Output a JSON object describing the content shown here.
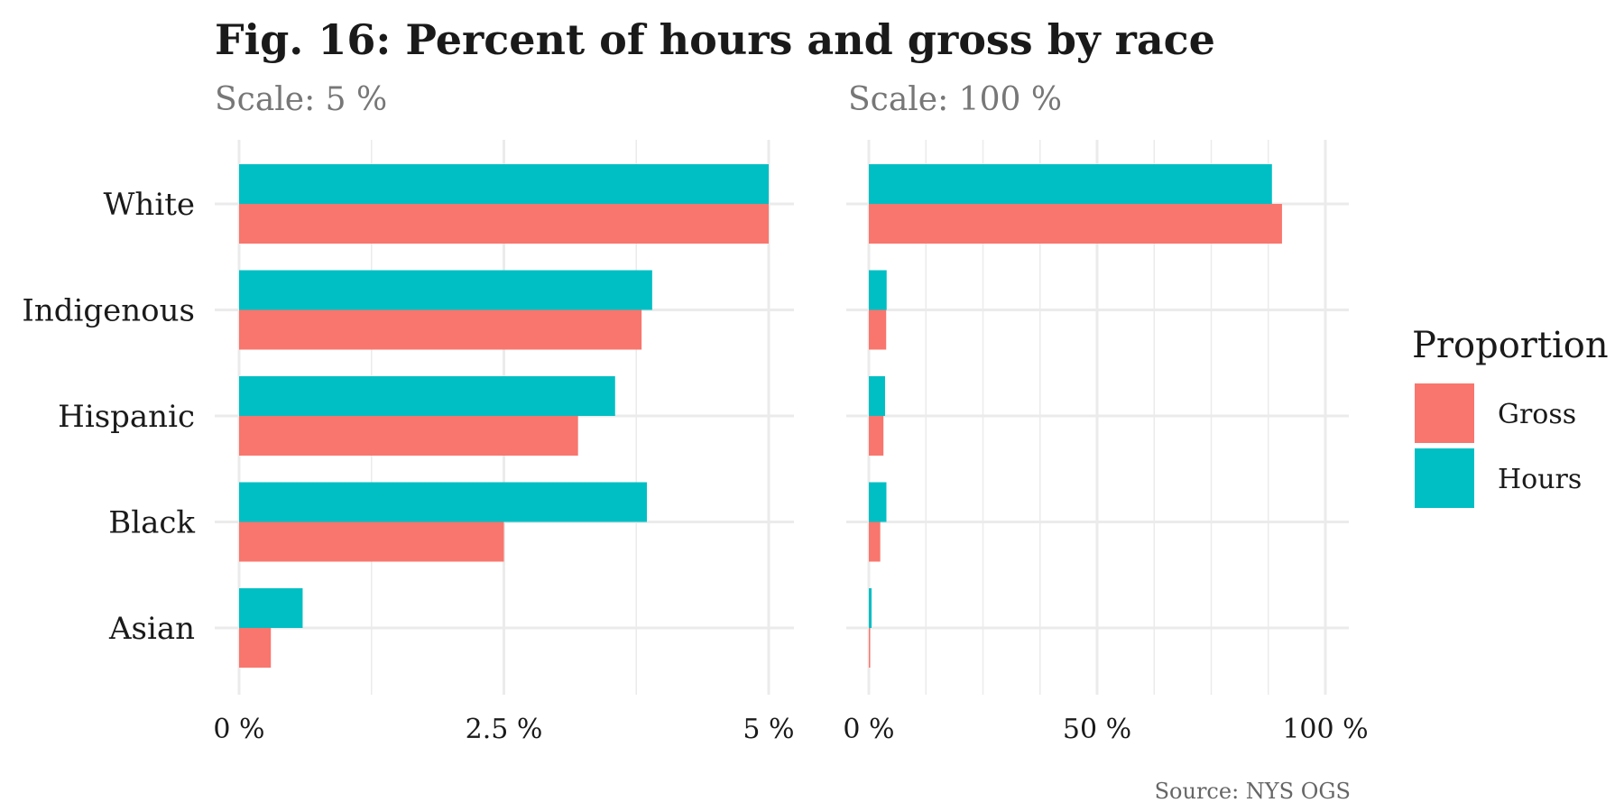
{
  "chart_data": {
    "type": "bar",
    "orientation": "horizontal",
    "title": "Fig. 16: Percent of hours and gross by race",
    "caption": "Source: NYS OGS",
    "categories": [
      "White",
      "Indigenous",
      "Hispanic",
      "Black",
      "Asian"
    ],
    "legend": {
      "title": "Proportion",
      "placement": "right",
      "entries": [
        {
          "name": "Gross",
          "color": "#F8766D"
        },
        {
          "name": "Hours",
          "color": "#00BFC4"
        }
      ]
    },
    "panels": [
      {
        "subtitle": "Scale: 5 %",
        "xlim": [
          0,
          5
        ],
        "ticks": [
          {
            "value": 0,
            "label": "0 %"
          },
          {
            "value": 2.5,
            "label": "2.5 %"
          },
          {
            "value": 5,
            "label": "5 %"
          }
        ],
        "minor_ticks": [
          1.25,
          3.75
        ],
        "series": [
          {
            "name": "Gross",
            "values": [
              5,
              3.8,
              3.2,
              2.5,
              0.3
            ]
          },
          {
            "name": "Hours",
            "values": [
              5,
              3.9,
              3.55,
              3.85,
              0.6
            ]
          }
        ]
      },
      {
        "subtitle": "Scale: 100 %",
        "xlim": [
          0,
          100
        ],
        "ticks": [
          {
            "value": 0,
            "label": "0 %"
          },
          {
            "value": 50,
            "label": "50 %"
          },
          {
            "value": 100,
            "label": "100 %"
          }
        ],
        "minor_ticks": [
          12.5,
          25,
          37.5,
          62.5,
          75,
          87.5
        ],
        "series": [
          {
            "name": "Gross",
            "values": [
              90.5,
              3.8,
              3.2,
              2.5,
              0.3
            ]
          },
          {
            "name": "Hours",
            "values": [
              88.3,
              3.9,
              3.55,
              3.85,
              0.6
            ]
          }
        ]
      }
    ],
    "grid": true
  }
}
